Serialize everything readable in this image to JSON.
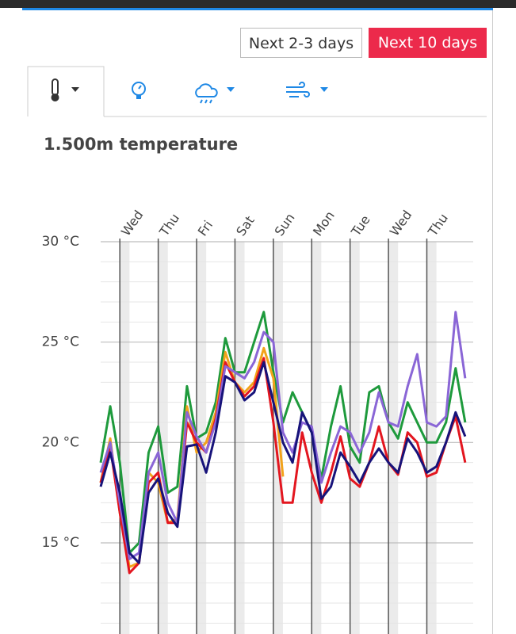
{
  "buttons": [
    "Next 2-3 days",
    "Next 10 days"
  ],
  "chart_data": {
    "type": "line",
    "title": "1.500m temperature",
    "x": [
      -12,
      -6,
      0,
      6,
      12,
      18,
      24,
      30,
      36,
      42,
      48,
      54,
      60,
      66,
      72,
      78,
      84,
      90,
      96,
      102,
      108,
      114,
      120,
      126,
      132,
      138,
      144,
      150,
      156,
      162,
      168,
      174,
      180,
      186,
      192,
      198,
      204,
      210,
      216
    ],
    "xlim": [
      -12,
      221
    ],
    "xticks": [
      {
        "value": 0,
        "label": "Wed"
      },
      {
        "value": 24,
        "label": "Thu"
      },
      {
        "value": 48,
        "label": "Fri"
      },
      {
        "value": 72,
        "label": "Sat"
      },
      {
        "value": 96,
        "label": "Sun"
      },
      {
        "value": 120,
        "label": "Mon"
      },
      {
        "value": 144,
        "label": "Tue"
      },
      {
        "value": 168,
        "label": "Wed"
      },
      {
        "value": 192,
        "label": "Thu"
      }
    ],
    "ylim": [
      10.5,
      30
    ],
    "yticks": [
      {
        "value": 15,
        "label": "15 °C"
      },
      {
        "value": 20,
        "label": "20 °C"
      },
      {
        "value": 25,
        "label": "25 °C"
      },
      {
        "value": 30,
        "label": "30 °C"
      }
    ],
    "minor_yticks": [
      11,
      12,
      13,
      14,
      16,
      17,
      18,
      19,
      21,
      22,
      23,
      24,
      26,
      27,
      28,
      29
    ],
    "grid": true,
    "series": [
      {
        "color": "#1e9a3c",
        "values": [
          19.0,
          21.8,
          19.0,
          14.5,
          15.0,
          19.5,
          20.8,
          17.5,
          17.8,
          22.8,
          20.2,
          20.5,
          22.0,
          25.2,
          23.5,
          23.5,
          25.0,
          26.5,
          23.5,
          21.0,
          22.5,
          21.5,
          20.5,
          18.2,
          20.8,
          22.8,
          19.8,
          19.0,
          22.5,
          22.8,
          21.0,
          20.2,
          22.0,
          21.0,
          20.0,
          20.0,
          21.0,
          23.7,
          21.0
        ]
      },
      {
        "color": "#f2a31b",
        "values": [
          18.0,
          20.2,
          16.5,
          13.8,
          14.0,
          18.5,
          18.0,
          16.0,
          16.2,
          21.8,
          19.5,
          20.0,
          21.5,
          24.5,
          23.0,
          22.5,
          23.0,
          24.7,
          23.2,
          18.3,
          null,
          null,
          null,
          null,
          null,
          null,
          null,
          null,
          null,
          null,
          null,
          null,
          null,
          null,
          null,
          null,
          null,
          null,
          null
        ]
      },
      {
        "color": "#e3161f",
        "values": [
          18.0,
          19.8,
          16.5,
          13.5,
          14.0,
          18.0,
          18.5,
          16.0,
          16.0,
          21.0,
          20.0,
          19.5,
          21.2,
          24.0,
          23.0,
          22.3,
          22.8,
          24.2,
          21.0,
          17.0,
          17.0,
          20.5,
          18.5,
          17.0,
          18.5,
          20.3,
          18.2,
          17.8,
          19.0,
          20.8,
          19.0,
          18.4,
          20.5,
          20.0,
          18.3,
          18.5,
          20.0,
          21.3,
          19.0
        ]
      },
      {
        "color": "#8a66d6",
        "values": [
          18.5,
          20.0,
          17.0,
          14.2,
          14.5,
          18.5,
          19.5,
          17.0,
          16.0,
          21.5,
          20.3,
          19.5,
          21.0,
          23.8,
          23.5,
          23.2,
          24.0,
          25.5,
          25.0,
          20.5,
          19.5,
          21.0,
          20.8,
          18.0,
          19.5,
          20.8,
          20.5,
          19.5,
          20.5,
          22.5,
          21.0,
          20.8,
          22.8,
          24.4,
          21.0,
          20.8,
          21.3,
          26.5,
          23.2
        ]
      },
      {
        "color": "#17137a",
        "values": [
          17.8,
          19.5,
          17.5,
          14.5,
          14.0,
          17.5,
          18.2,
          16.5,
          15.8,
          19.8,
          19.9,
          18.5,
          20.5,
          23.3,
          23.0,
          22.1,
          22.5,
          24.0,
          22.0,
          20.0,
          19.0,
          21.5,
          20.5,
          17.2,
          17.8,
          19.5,
          18.8,
          18.0,
          19.0,
          19.7,
          19.0,
          18.5,
          20.2,
          19.5,
          18.5,
          18.8,
          20.0,
          21.5,
          20.3
        ]
      }
    ]
  }
}
